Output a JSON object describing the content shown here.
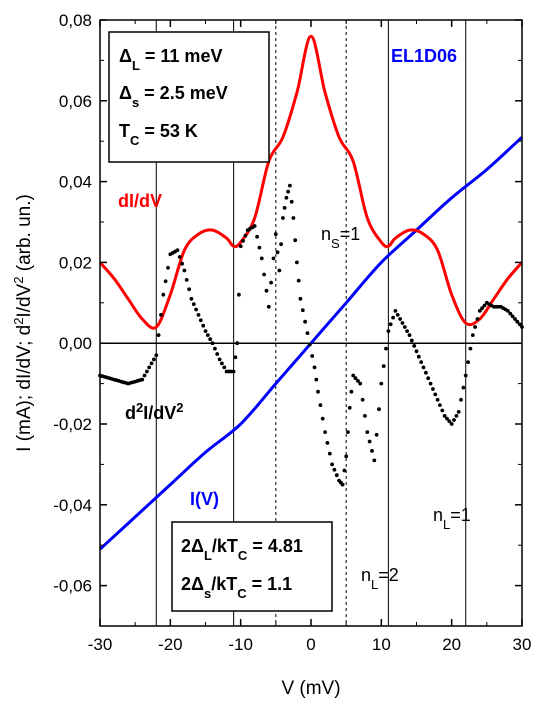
{
  "chart_data": {
    "type": "line",
    "title": "",
    "xlabel": "V (mV)",
    "ylabel": "I (mA); dI/dV; d²I/dV² (arb. un.)",
    "xlim": [
      -30,
      30
    ],
    "ylim": [
      -0.07,
      0.08
    ],
    "x_ticks": [
      "-30",
      "-20",
      "-10",
      "0",
      "10",
      "20",
      "30"
    ],
    "y_ticks": [
      "-0,06",
      "-0,04",
      "-0,02",
      "0,00",
      "0,02",
      "0,04",
      "0,06",
      "0,08"
    ],
    "y_tick_values": [
      -0.06,
      -0.04,
      -0.02,
      0.0,
      0.02,
      0.04,
      0.06,
      0.08
    ],
    "grid": false,
    "series": [
      {
        "name": "I(V)",
        "color": "#0000ff",
        "style": "line",
        "x": [
          -30,
          -25,
          -20,
          -15,
          -10,
          -5,
          0,
          5,
          10,
          15,
          20,
          25,
          30
        ],
        "y": [
          -0.051,
          -0.043,
          -0.035,
          -0.027,
          -0.02,
          -0.01,
          0.0,
          0.01,
          0.02,
          0.028,
          0.036,
          0.043,
          0.051
        ]
      },
      {
        "name": "dI/dV",
        "color": "#ff0000",
        "style": "line",
        "x": [
          -30,
          -28,
          -26,
          -24,
          -22,
          -20,
          -18,
          -16,
          -14,
          -12,
          -11,
          -10,
          -8,
          -6,
          -4,
          -2,
          0,
          2,
          4,
          6,
          8,
          10,
          11,
          12,
          14,
          16,
          18,
          20,
          22,
          24,
          26,
          28,
          30
        ],
        "y": [
          0.02,
          0.016,
          0.011,
          0.006,
          0.004,
          0.012,
          0.023,
          0.027,
          0.028,
          0.026,
          0.024,
          0.025,
          0.031,
          0.045,
          0.051,
          0.062,
          0.076,
          0.062,
          0.051,
          0.045,
          0.031,
          0.025,
          0.024,
          0.026,
          0.028,
          0.027,
          0.023,
          0.012,
          0.005,
          0.006,
          0.011,
          0.016,
          0.02
        ]
      },
      {
        "name": "d²I/dV²",
        "color": "#000000",
        "style": "scatter",
        "x": [
          -30,
          -28,
          -26,
          -24,
          -22,
          -21,
          -20,
          -19,
          -18,
          -17,
          -16,
          -15,
          -14,
          -13,
          -12,
          -11,
          -10.5,
          -10,
          -9,
          -8,
          -7,
          -6,
          -5,
          -4.5,
          -4,
          -3.5,
          -3,
          -2.5,
          -2,
          -1.5,
          0.5,
          1,
          2,
          3,
          4,
          4.5,
          5,
          5.5,
          6,
          7,
          8,
          9,
          10,
          11,
          12,
          13,
          14,
          15,
          16,
          17,
          18,
          19,
          20,
          21,
          22,
          23,
          24,
          25,
          26,
          27,
          28,
          29,
          30
        ],
        "y": [
          -0.008,
          -0.009,
          -0.01,
          -0.009,
          -0.003,
          0.012,
          0.022,
          0.023,
          0.018,
          0.011,
          0.007,
          0.003,
          0.0,
          -0.004,
          -0.007,
          -0.007,
          0.0,
          0.024,
          0.028,
          0.029,
          0.021,
          0.009,
          0.027,
          0.018,
          0.031,
          0.036,
          0.039,
          0.031,
          0.02,
          0.011,
          -0.006,
          -0.012,
          -0.022,
          -0.03,
          -0.034,
          -0.035,
          -0.028,
          -0.016,
          -0.008,
          -0.01,
          -0.022,
          -0.029,
          -0.01,
          0.003,
          0.008,
          0.005,
          0.002,
          -0.002,
          -0.006,
          -0.01,
          -0.014,
          -0.018,
          -0.02,
          -0.017,
          -0.008,
          0.002,
          0.008,
          0.01,
          0.009,
          0.009,
          0.008,
          0.006,
          0.004
        ]
      }
    ],
    "vlines_solid": [
      -22,
      -11,
      11,
      22
    ],
    "vlines_dashed": [
      -5,
      5
    ],
    "hline": 0.0,
    "annotations": {
      "delta_L": "ΔL = 11 meV",
      "delta_S": "ΔS = 2.5 meV",
      "Tc": "TC = 53 K",
      "sample": "EL1D06",
      "ratio_L": "2ΔL/kTC = 4.81",
      "ratio_S": "2ΔS/kTC = 1.1",
      "nS1": "nS=1",
      "nL1": "nL=1",
      "nL2": "nL=2"
    }
  }
}
